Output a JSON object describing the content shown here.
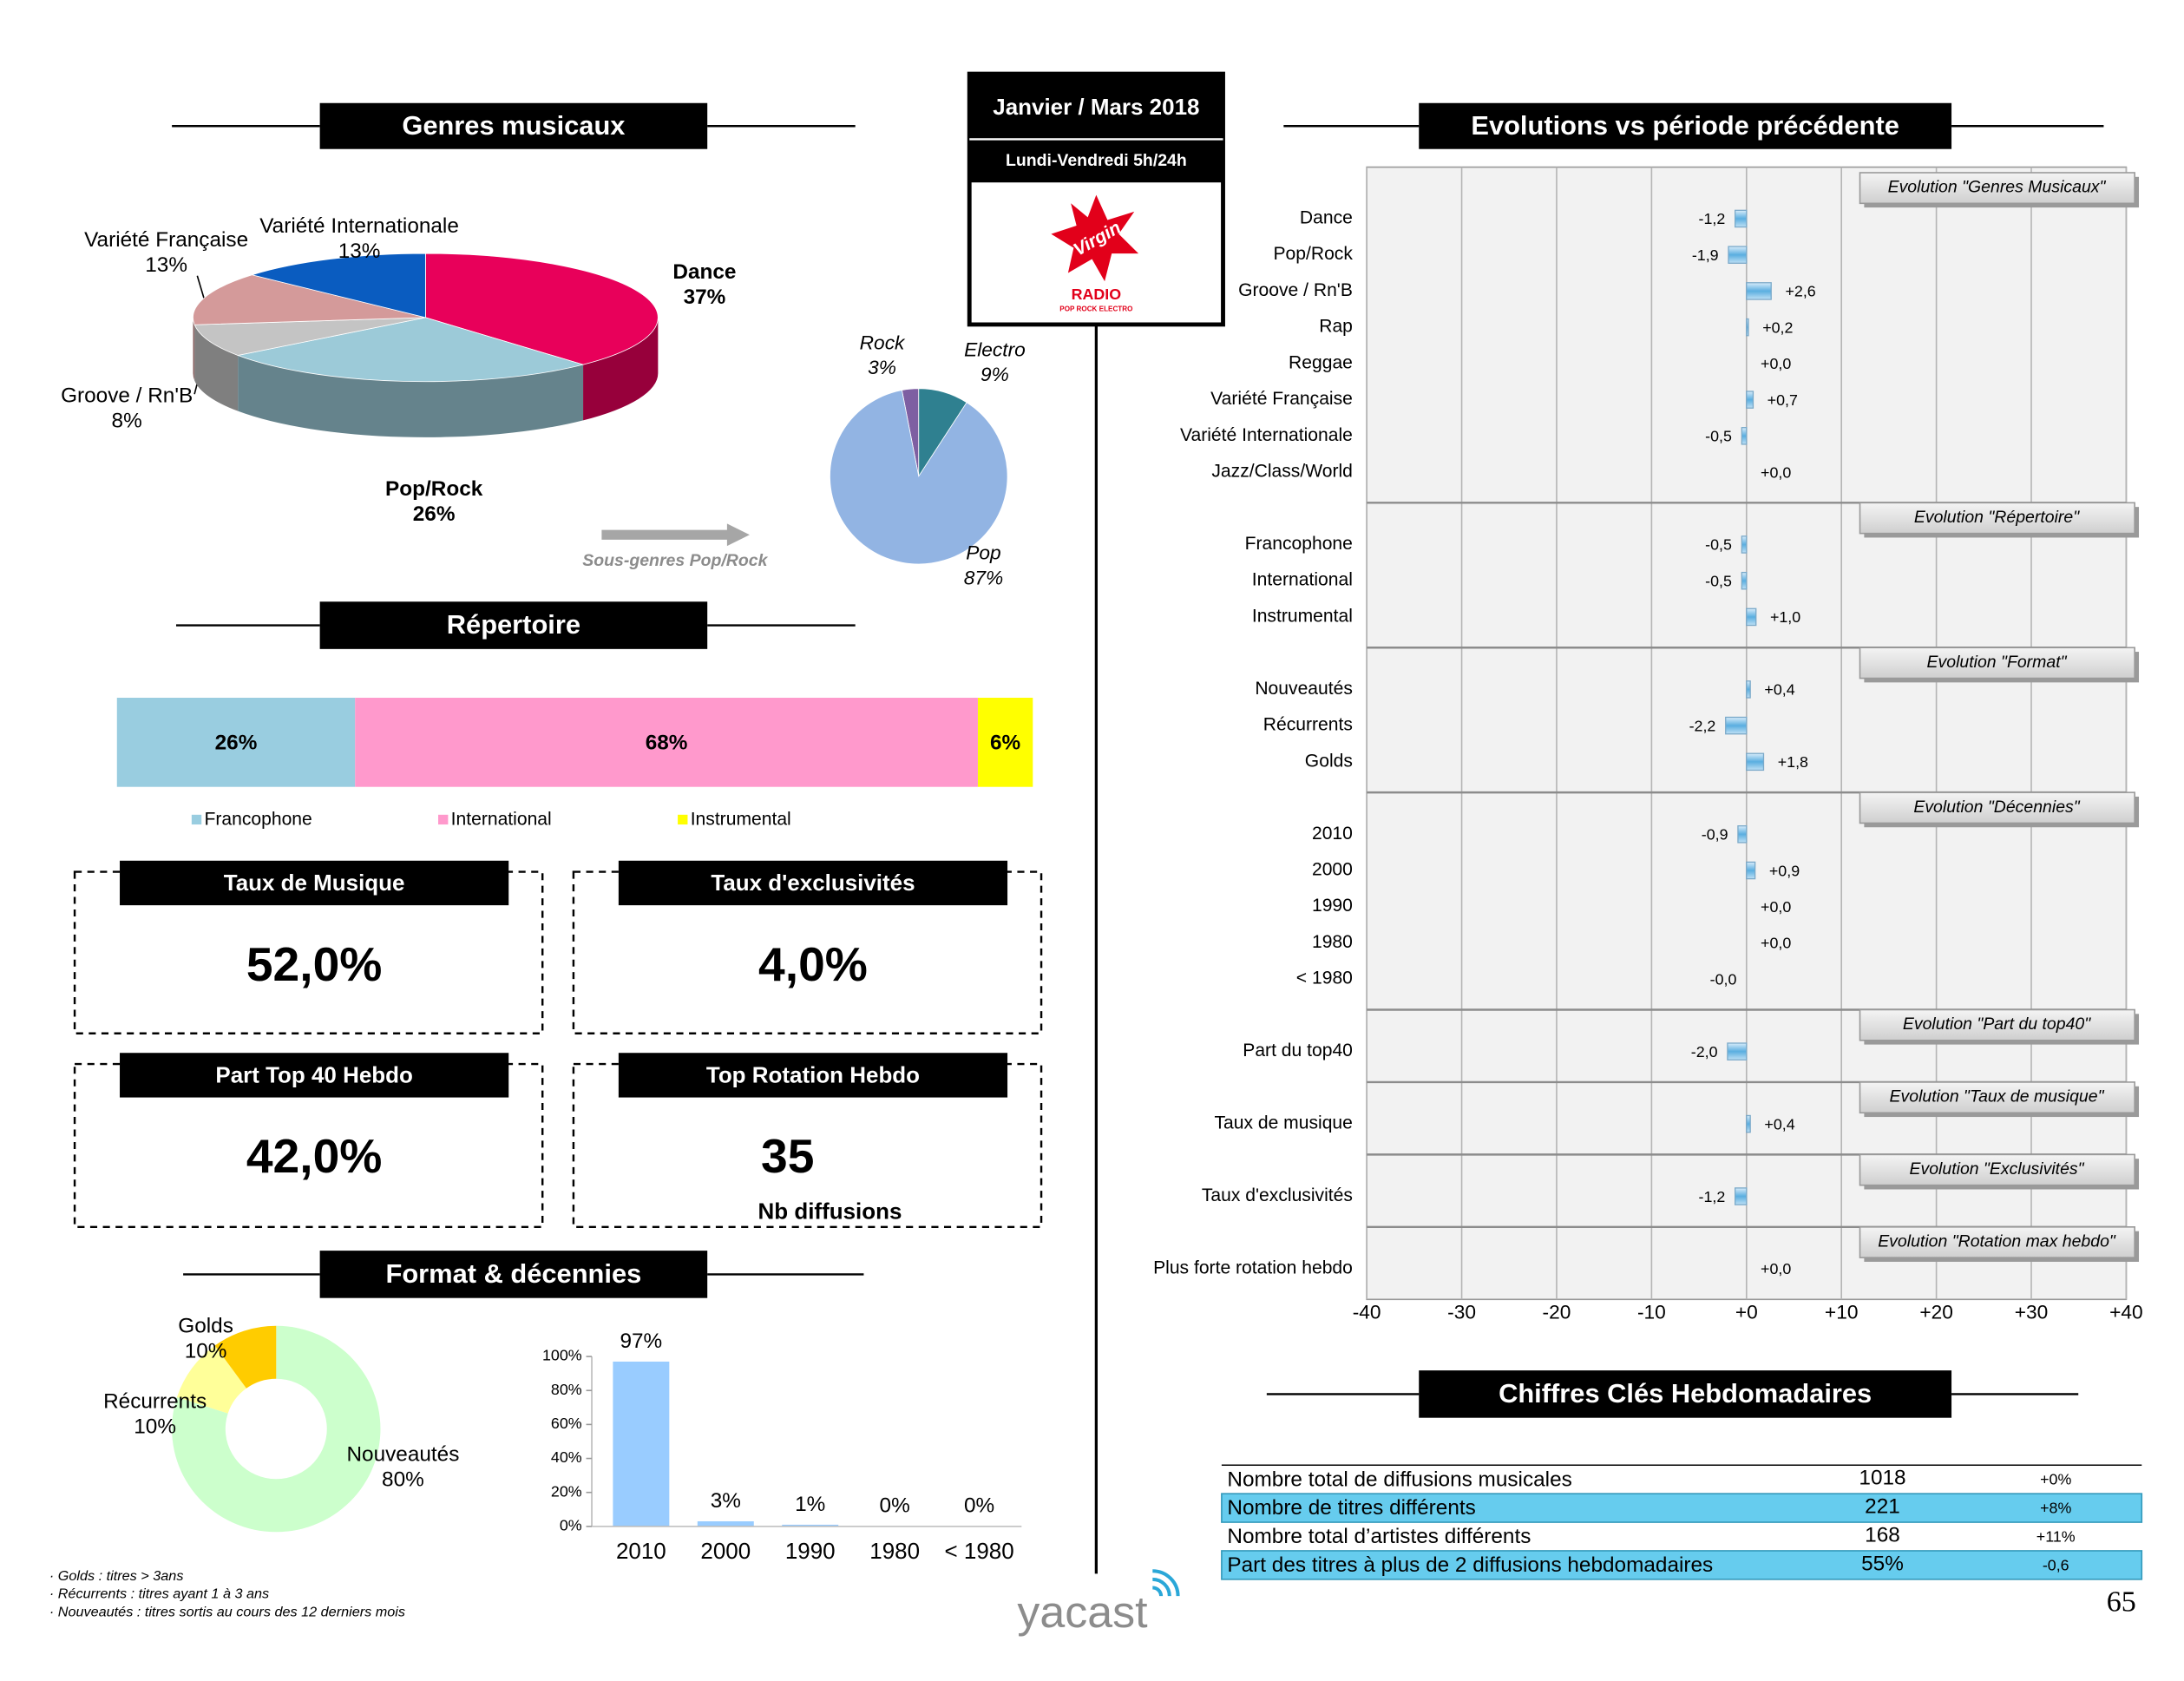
{
  "header": {
    "period": "Janvier / Mars 2018",
    "slot": "Lundi-Vendredi 5h/24h",
    "logo": "Virgin",
    "logo_name": "RADIO",
    "logo_sub": "POP ROCK ELECTRO"
  },
  "chart_data": [
    {
      "type": "pie",
      "three_d": true,
      "title": "Genres musicaux",
      "categories": [
        "Dance",
        "Pop/Rock",
        "Groove / Rn'B",
        "Variété Française",
        "Variété Internationale"
      ],
      "values": [
        37,
        26,
        8,
        13,
        13
      ],
      "value_labels": [
        "37%",
        "26%",
        "8%",
        "13%",
        "13%"
      ],
      "colors": [
        "#e8005a",
        "#9ccad8",
        "#c4c4c4",
        "#d49a9a",
        "#0a5cc0"
      ]
    },
    {
      "type": "pie",
      "annotation": "Sous-genres Pop/Rock",
      "categories": [
        "Rock",
        "Electro",
        "Pop"
      ],
      "values": [
        3,
        9,
        87
      ],
      "value_labels": [
        "3%",
        "9%",
        "87%"
      ],
      "colors": [
        "#7e5fa2",
        "#2f8090",
        "#92b4e3"
      ]
    },
    {
      "type": "bar",
      "stacked": true,
      "orientation": "horizontal",
      "title": "Répertoire",
      "series": [
        {
          "name": "Francophone",
          "color": "#99cde0",
          "values": [
            26
          ],
          "value_labels": [
            "26%"
          ]
        },
        {
          "name": "International",
          "color": "#ff99cc",
          "values": [
            68
          ],
          "value_labels": [
            "68%"
          ]
        },
        {
          "name": "Instrumental",
          "color": "#ffff00",
          "values": [
            6
          ],
          "value_labels": [
            "6%"
          ]
        }
      ]
    },
    {
      "type": "donut",
      "title": "Format & décennies",
      "categories": [
        "Nouveautés",
        "Récurrents",
        "Golds"
      ],
      "values": [
        80,
        10,
        10
      ],
      "value_labels": [
        "80%",
        "10%",
        "10%"
      ],
      "colors": [
        "#ccffcc",
        "#ffff99",
        "#ffcc00"
      ]
    },
    {
      "type": "bar",
      "categories": [
        "2010",
        "2000",
        "1990",
        "1980",
        "< 1980"
      ],
      "values": [
        97,
        3,
        1,
        0,
        0
      ],
      "value_labels": [
        "97%",
        "3%",
        "1%",
        "0%",
        "0%"
      ],
      "color": "#99ccff",
      "ylim": [
        0,
        100
      ],
      "yticks": [
        {
          "value": 0,
          "label": "0%"
        },
        {
          "value": 20,
          "label": "20%"
        },
        {
          "value": 40,
          "label": "40%"
        },
        {
          "value": 60,
          "label": "60%"
        },
        {
          "value": 80,
          "label": "80%"
        },
        {
          "value": 100,
          "label": "100%"
        }
      ]
    },
    {
      "type": "bar",
      "orientation": "horizontal",
      "title": "Evolutions vs période précédente",
      "grid": true,
      "xlim": [
        -40,
        40
      ],
      "xticks": [
        -40,
        -30,
        -20,
        -10,
        {
          "value": 0,
          "label": "+0"
        },
        {
          "value": 10,
          "label": "+10"
        },
        {
          "value": 20,
          "label": "+20"
        },
        {
          "value": 30,
          "label": "+30"
        },
        {
          "value": 40,
          "label": "+40"
        }
      ],
      "groups": [
        {
          "label": "Evolution \"Genres  Musicaux\"",
          "categories": [
            "Dance",
            "Pop/Rock",
            "Groove / Rn'B",
            "Rap",
            "Reggae",
            "Variété Française",
            "Variété Internationale",
            "Jazz/Class/World"
          ],
          "values": [
            -1.2,
            -1.9,
            2.6,
            0.2,
            0.0,
            0.7,
            -0.5,
            0.0
          ],
          "value_labels": [
            "-1,2",
            "-1,9",
            "+2,6",
            "+0,2",
            "+0,0",
            "+0,7",
            "-0,5",
            "+0,0"
          ]
        },
        {
          "label": "Evolution \"Répertoire\"",
          "categories": [
            "Francophone",
            "International",
            "Instrumental"
          ],
          "values": [
            -0.5,
            -0.5,
            1.0
          ],
          "value_labels": [
            "-0,5",
            "-0,5",
            "+1,0"
          ]
        },
        {
          "label": "Evolution \"Format\"",
          "categories": [
            "Nouveautés",
            "Récurrents",
            "Golds"
          ],
          "values": [
            0.4,
            -2.2,
            1.8
          ],
          "value_labels": [
            "+0,4",
            "-2,2",
            "+1,8"
          ]
        },
        {
          "label": "Evolution \"Décennies\"",
          "categories": [
            "2010",
            "2000",
            "1990",
            "1980",
            "< 1980"
          ],
          "values": [
            -0.9,
            0.9,
            0.0,
            0.0,
            0.0
          ],
          "value_labels": [
            "-0,9",
            "+0,9",
            "+0,0",
            "+0,0",
            "-0,0"
          ]
        },
        {
          "label": "Evolution \"Part du top40\"",
          "categories": [
            "Part du top40"
          ],
          "values": [
            -2.0
          ],
          "value_labels": [
            "-2,0"
          ]
        },
        {
          "label": "Evolution \"Taux  de  musique\"",
          "categories": [
            "Taux de musique"
          ],
          "values": [
            0.4
          ],
          "value_labels": [
            "+0,4"
          ]
        },
        {
          "label": "Evolution \"Exclusivités\"",
          "categories": [
            "Taux d'exclusivités"
          ],
          "values": [
            -1.2
          ],
          "value_labels": [
            "-1,2"
          ]
        },
        {
          "label": "Evolution \"Rotation max hebdo\"",
          "categories": [
            "Plus forte rotation hebdo"
          ],
          "values": [
            0.0
          ],
          "value_labels": [
            "+0,0"
          ]
        }
      ]
    }
  ],
  "kpis": [
    {
      "title": "Taux de Musique",
      "value": "52,0%"
    },
    {
      "title": "Taux  d'exclusivités",
      "value": "4,0%"
    },
    {
      "title": "Part Top 40 Hebdo",
      "value": "42,0%"
    },
    {
      "title": "Top Rotation Hebdo",
      "value": "35",
      "note": "Nb diffusions"
    }
  ],
  "table": {
    "title": "Chiffres Clés Hebdomadaires",
    "rows": [
      [
        "Nombre total de diffusions musicales",
        "1018",
        "+0%"
      ],
      [
        "Nombre de titres différents",
        "221",
        "+8%"
      ],
      [
        "Nombre total d’artistes différents",
        "168",
        "+11%"
      ],
      [
        "Part des titres à plus de 2 diffusions hebdomadaires",
        "55%",
        "-0,6"
      ]
    ]
  },
  "footnotes": [
    "· Golds : titres > 3ans",
    "· Récurrents : titres ayant  1 à 3 ans",
    "· Nouveautés  : titres sortis au cours des 12 derniers mois"
  ],
  "brand": "yacast",
  "page_number": "65"
}
